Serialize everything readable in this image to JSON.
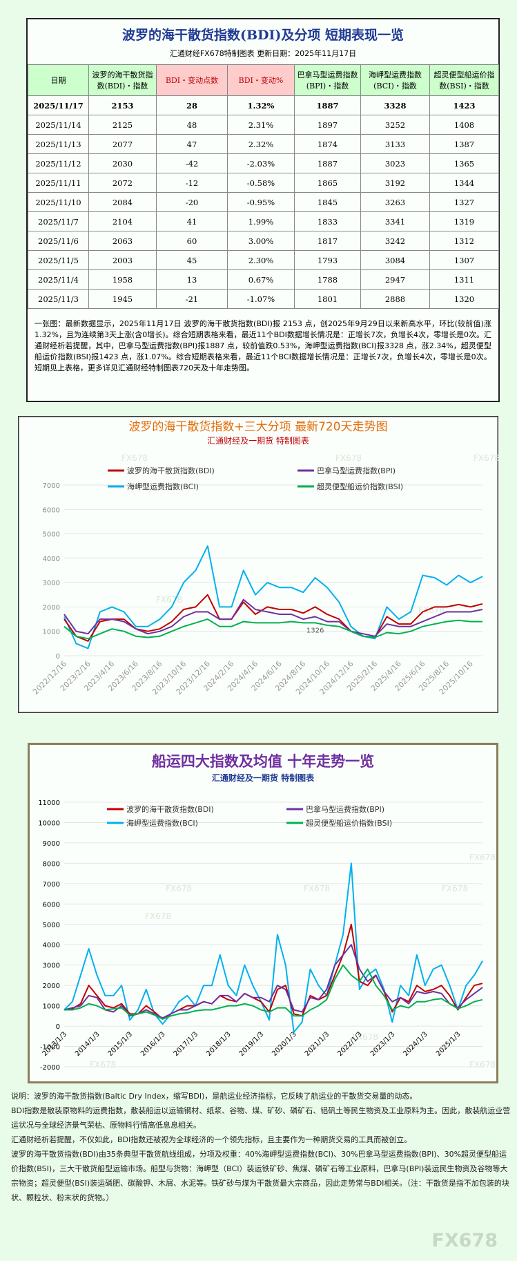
{
  "header": {
    "title": "波罗的海干散货指数(BDI)及分项 短期表现一览",
    "subtitle": "汇通财经FX678特制图表     更新日期：2025年11月17日"
  },
  "table": {
    "columns": [
      "日期",
      "波罗的海干散货指数(BDI)・指数",
      "BDI・变动点数",
      "BDI・变动%",
      "巴拿马型运费指数(BPI)・指数",
      "海岬型运费指数(BCI)・指数",
      "超灵便型船运价指数(BSI)・指数"
    ],
    "rows": [
      [
        "2025/11/17",
        "2153",
        "28",
        "1.32%",
        "1887",
        "3328",
        "1423"
      ],
      [
        "2025/11/14",
        "2125",
        "48",
        "2.31%",
        "1897",
        "3252",
        "1408"
      ],
      [
        "2025/11/13",
        "2077",
        "47",
        "2.32%",
        "1874",
        "3133",
        "1387"
      ],
      [
        "2025/11/12",
        "2030",
        "-42",
        "-2.03%",
        "1887",
        "3023",
        "1365"
      ],
      [
        "2025/11/11",
        "2072",
        "-12",
        "-0.58%",
        "1865",
        "3192",
        "1344"
      ],
      [
        "2025/11/10",
        "2084",
        "-20",
        "-0.95%",
        "1845",
        "3263",
        "1327"
      ],
      [
        "2025/11/7",
        "2104",
        "41",
        "1.99%",
        "1833",
        "3341",
        "1319"
      ],
      [
        "2025/11/6",
        "2063",
        "60",
        "3.00%",
        "1817",
        "3242",
        "1312"
      ],
      [
        "2025/11/5",
        "2003",
        "45",
        "2.30%",
        "1793",
        "3084",
        "1307"
      ],
      [
        "2025/11/4",
        "1958",
        "13",
        "0.67%",
        "1788",
        "2947",
        "1311"
      ],
      [
        "2025/11/3",
        "1945",
        "-21",
        "-1.07%",
        "1801",
        "2888",
        "1320"
      ]
    ]
  },
  "summary": "一张图：最新数据显示，2025年11月17日 波罗的海干散货指数(BDI)报 2153 点，创2025年9月29日以来新高水平，环比(较前值)涨1.32%，且为连续第3天上涨(含0增长)。综合短期表格来看，最近11个BDI数据增长情况是：正增长7次，负增长4次，零增长是0次。汇通财经析若提醒，其中，巴拿马型运费指数(BPI)报1887 点，较前值跌0.53%，海岬型运费指数(BCI)报3328 点，涨2.34%，超灵便型船运价指数(BSI)报1423 点，涨1.07%。综合短期表格来看，最近11个BCI数据增长情况是：正增长7次，负增长4次，零增长是0次。短期见上表格，更多详见汇通财经特制图表720天及十年走势图。",
  "chart_data": [
    {
      "type": "line",
      "title": "波罗的海干散货指数+三大分项  最新720天走势图",
      "subtitle": "汇通财经及一期货  特制图表",
      "annotation": "1326",
      "categories": [
        "2022/12/16",
        null,
        "2023/2/16",
        null,
        "2023/4/16",
        null,
        "2023/6/16",
        null,
        "2023/8/16",
        null,
        "2023/10/16",
        null,
        "2023/12/16",
        null,
        "2024/2/16",
        null,
        "2024/4/16",
        null,
        "2024/6/16",
        null,
        "2024/8/16",
        null,
        "2024/10/16",
        null,
        "2024/12/16",
        null,
        "2025/2/16",
        null,
        "2025/4/16",
        null,
        "2025/6/16",
        null,
        "2025/8/16",
        null,
        "2025/10/16",
        null
      ],
      "series": [
        {
          "name": "波罗的海干散货指数(BDI)",
          "color": "#c00000",
          "values": [
            1500,
            800,
            600,
            1400,
            1500,
            1500,
            1100,
            1000,
            1100,
            1400,
            1900,
            2000,
            2500,
            1500,
            1500,
            2200,
            1700,
            2000,
            1900,
            1900,
            1750,
            2000,
            1700,
            1500,
            1000,
            800,
            750,
            1600,
            1300,
            1300,
            1800,
            2000,
            2000,
            2100,
            2000,
            2125
          ]
        },
        {
          "name": "巴拿马型运费指数(BPI)",
          "color": "#7030a0",
          "values": [
            1700,
            1000,
            900,
            1500,
            1500,
            1400,
            1100,
            900,
            1000,
            1200,
            1600,
            1800,
            1800,
            1500,
            1500,
            2300,
            1900,
            1800,
            1700,
            1700,
            1500,
            1600,
            1400,
            1400,
            1000,
            900,
            800,
            1300,
            1200,
            1200,
            1400,
            1600,
            1800,
            1800,
            1800,
            1900
          ]
        },
        {
          "name": "海岬型运费指数(BCI)",
          "color": "#00b0f0",
          "values": [
            1600,
            500,
            300,
            1800,
            2000,
            1800,
            1200,
            1200,
            1500,
            2000,
            3000,
            3500,
            4500,
            2000,
            2000,
            3500,
            2500,
            3000,
            2800,
            2800,
            2600,
            3200,
            2800,
            2200,
            1200,
            800,
            700,
            2000,
            1500,
            1800,
            3300,
            3200,
            2900,
            3300,
            3000,
            3250
          ]
        },
        {
          "name": "超灵便型船运价指数(BSI)",
          "color": "#00b050",
          "values": [
            1200,
            800,
            700,
            900,
            1100,
            1000,
            800,
            750,
            800,
            1000,
            1200,
            1350,
            1500,
            1200,
            1200,
            1400,
            1350,
            1350,
            1350,
            1400,
            1350,
            1350,
            1250,
            1200,
            1000,
            800,
            750,
            950,
            900,
            1000,
            1200,
            1300,
            1400,
            1450,
            1400,
            1400
          ]
        }
      ],
      "ylim": [
        0,
        7000
      ],
      "yticks": [
        0,
        1000,
        2000,
        3000,
        4000,
        5000,
        6000,
        7000
      ],
      "grid": true
    },
    {
      "type": "line",
      "title": "船运四大指数及均值 十年走势一览",
      "subtitle": "汇通财经及一期货 特制图表",
      "categories": [
        "2013/1/3",
        null,
        null,
        null,
        "2014/1/3",
        null,
        null,
        null,
        "2015/1/3",
        null,
        null,
        null,
        "2016/1/3",
        null,
        null,
        null,
        "2017/1/3",
        null,
        null,
        null,
        "2018/1/3",
        null,
        null,
        null,
        "2019/1/3",
        null,
        null,
        null,
        "2020/1/3",
        null,
        null,
        null,
        "2021/1/3",
        null,
        null,
        null,
        "2022/1/3",
        null,
        null,
        null,
        "2023/1/3",
        null,
        null,
        null,
        "2024/1/3",
        null,
        null,
        null,
        "2025/1/3",
        null,
        null,
        null
      ],
      "series": [
        {
          "name": "波罗的海干散货指数(BDI)",
          "color": "#c00000",
          "values": [
            800,
            850,
            1100,
            2000,
            1500,
            1000,
            900,
            1100,
            600,
            600,
            1000,
            700,
            350,
            600,
            800,
            1000,
            1000,
            1200,
            1100,
            1500,
            1300,
            1200,
            1600,
            1400,
            1200,
            700,
            1800,
            2000,
            600,
            500,
            1500,
            1300,
            1500,
            2500,
            3500,
            5000,
            2200,
            2000,
            2500,
            1700,
            700,
            1400,
            1200,
            2000,
            1700,
            1800,
            2000,
            1500,
            800,
            1400,
            2000,
            2100
          ]
        },
        {
          "name": "巴拿马型运费指数(BPI)",
          "color": "#7030a0",
          "values": [
            800,
            900,
            1000,
            1500,
            1400,
            800,
            700,
            1000,
            500,
            600,
            800,
            600,
            400,
            600,
            800,
            800,
            1000,
            1200,
            1100,
            1500,
            1500,
            1200,
            1600,
            1400,
            1400,
            1200,
            2000,
            1800,
            800,
            700,
            1400,
            1300,
            1800,
            3000,
            3500,
            4000,
            2800,
            2200,
            2500,
            1700,
            1200,
            1400,
            1100,
            1700,
            1600,
            1700,
            1600,
            1100,
            900,
            1300,
            1600,
            1900
          ]
        },
        {
          "name": "海岬型运费指数(BCI)",
          "color": "#00b0f0",
          "values": [
            800,
            1200,
            2500,
            3800,
            2500,
            1500,
            1500,
            2000,
            300,
            800,
            1800,
            600,
            100,
            600,
            1200,
            1500,
            1000,
            2000,
            2000,
            3500,
            2000,
            1500,
            3000,
            2000,
            1200,
            300,
            4500,
            3000,
            -300,
            200,
            2800,
            2000,
            1500,
            3000,
            4500,
            8000,
            1800,
            2500,
            2800,
            1800,
            200,
            2000,
            1500,
            3500,
            2000,
            2800,
            3000,
            2000,
            800,
            2000,
            2500,
            3200
          ]
        },
        {
          "name": "超灵便型船运价指数(BSI)",
          "color": "#00b050",
          "values": [
            800,
            800,
            900,
            1100,
            1000,
            800,
            850,
            900,
            550,
            600,
            700,
            550,
            350,
            500,
            600,
            650,
            750,
            800,
            800,
            900,
            1000,
            1000,
            1100,
            1000,
            800,
            700,
            900,
            900,
            500,
            500,
            800,
            1000,
            1300,
            2300,
            3000,
            2500,
            2200,
            2800,
            2000,
            1500,
            800,
            1000,
            900,
            1200,
            1200,
            1300,
            1350,
            1100,
            850,
            1000,
            1200,
            1300
          ]
        }
      ],
      "ylim": [
        -2000,
        11000
      ],
      "yticks": [
        -2000,
        -1000,
        0,
        1000,
        2000,
        3000,
        4000,
        5000,
        6000,
        7000,
        8000,
        9000,
        10000,
        11000
      ],
      "grid": true
    }
  ],
  "notes": [
    "说明：波罗的海干散货指数(Baltic Dry Index，缩写BDI)，是航运业经济指标，它反映了航运业的干散货交易量的动态。",
    "BDI指数是散装原物料的运费指数，散装船运以运输钢材、纸浆、谷物、煤、矿砂、磷矿石、铝矾土等民生物资及工业原料为主。因此，散装航运业营运状况与全球经济景气荣枯、原物料行情高低息息相关。",
    "汇通财经析若提醒，不仅如此，BDI指数还被视为全球经济的一个领先指标，且主要作为一种期货交易的工具而被创立。",
    "波罗的海干散货指数(BDI)由35条典型干散货航线组成，分项及权重：40%海岬型运费指数(BCI)、30%巴拿马型运费指数(BPI)、30%超灵便型船运价指数(BSI)，三大干散货船型运输市场。船型与货物：海岬型（BCI）装运铁矿砂、焦煤、磷矿石等工业原料，巴拿马(BPI)装运民生物资及谷物等大宗物资；超灵便型(BSI)装运磷肥、碳酸钾、木屑、水泥等。铁矿砂与煤为干散货最大宗商品，因此走势常与BDI相关。（注：干散货是指不加包装的块状、颗粒状、粉末状的货物。）"
  ],
  "watermark": "FX678"
}
